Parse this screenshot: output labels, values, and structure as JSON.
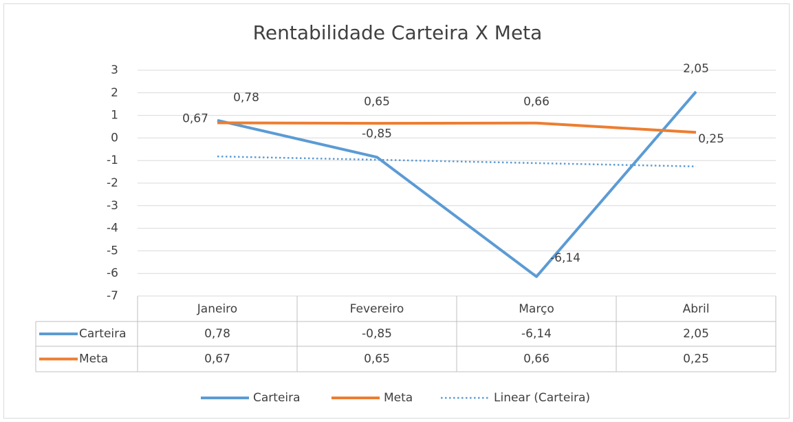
{
  "chart_data": {
    "type": "line",
    "title": "Rentabilidade Carteira X Meta",
    "categories": [
      "Janeiro",
      "Fevereiro",
      "Março",
      "Abril"
    ],
    "series": [
      {
        "name": "Carteira",
        "color": "#5b9bd5",
        "values": [
          0.78,
          -0.85,
          -6.14,
          2.05
        ],
        "value_labels": [
          "0,78",
          "-0,85",
          "-6,14",
          "2,05"
        ]
      },
      {
        "name": "Meta",
        "color": "#ed7d31",
        "values": [
          0.67,
          0.65,
          0.66,
          0.25
        ],
        "value_labels": [
          "0,67",
          "0,65",
          "0,66",
          "0,25"
        ]
      }
    ],
    "trendline": {
      "name": "Linear (Carteira)",
      "series": 0,
      "color": "#5b9bd5"
    },
    "ylim": [
      -7,
      3
    ],
    "yticks": [
      -7,
      -6,
      -5,
      -4,
      -3,
      -2,
      -1,
      0,
      1,
      2,
      3
    ],
    "grid": true,
    "legend": "bottom",
    "data_table": true
  }
}
